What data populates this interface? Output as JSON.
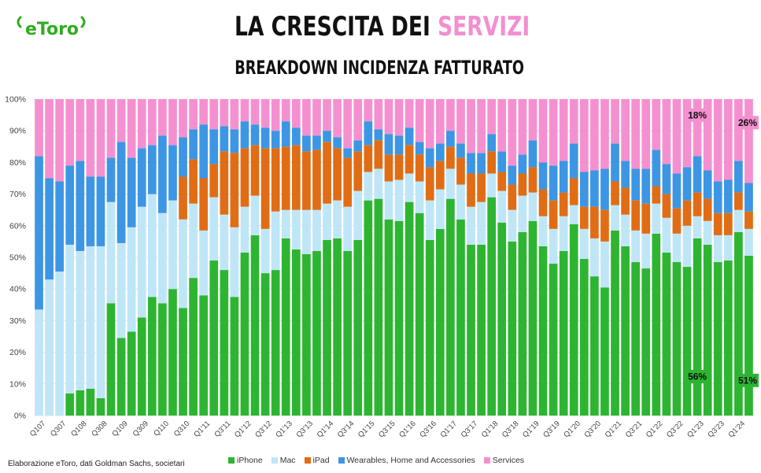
{
  "brand": {
    "logo_text": "eToro",
    "color": "#2fae1f"
  },
  "header": {
    "title_main": "LA CRESCITA DEI ",
    "title_highlight": "SERVIZI",
    "subtitle": "BREAKDOWN INCIDENZA FATTURATO"
  },
  "footer": {
    "source": "Elaborazione eToro, dati Goldman Sachs, societari"
  },
  "chart_data": {
    "type": "bar",
    "stacked": true,
    "percent_stacked": true,
    "ylim": [
      0,
      100
    ],
    "yticks": [
      "0%",
      "10%",
      "20%",
      "30%",
      "40%",
      "50%",
      "60%",
      "70%",
      "80%",
      "90%",
      "100%"
    ],
    "grid": "horizontal",
    "legend_position": "bottom",
    "categories": [
      "Q107",
      "Q207",
      "Q307",
      "Q407",
      "Q108",
      "Q208",
      "Q308",
      "Q408",
      "Q109",
      "Q209",
      "Q309",
      "Q409",
      "Q110",
      "Q210",
      "Q310",
      "Q410",
      "Q1'11",
      "Q2'11",
      "Q3'11",
      "Q4'11",
      "Q1'12",
      "Q2'12",
      "Q3'12",
      "Q4'12",
      "Q1'13",
      "Q2'13",
      "Q3'13",
      "Q4'13",
      "Q1'14",
      "Q2'14",
      "Q3'14",
      "Q4'14",
      "Q1'15",
      "Q2'15",
      "Q3'15",
      "Q4'15",
      "Q1'16",
      "Q2'16",
      "Q3'16",
      "Q4'16",
      "Q1'17",
      "Q2'17",
      "Q3'17",
      "Q4'17",
      "Q1'18",
      "Q2'18",
      "Q3'18",
      "Q4'18",
      "Q1'19",
      "Q2'19",
      "Q3'19",
      "Q4'19",
      "Q1'20",
      "Q2'20",
      "Q3'20",
      "Q4'20",
      "Q1'21",
      "Q2'21",
      "Q3'21",
      "Q4'21",
      "Q1'22",
      "Q2'22",
      "Q3'22",
      "Q4'22",
      "Q1'23",
      "Q2'23",
      "Q3'23",
      "Q4'23",
      "Q1'24",
      "Q2'24"
    ],
    "x_tick_labels_shown": [
      "Q107",
      "Q307",
      "Q108",
      "Q308",
      "Q109",
      "Q309",
      "Q110",
      "Q310",
      "Q1'11",
      "Q3'11",
      "Q1'12",
      "Q3'12",
      "Q1'13",
      "Q3'13",
      "Q1'14",
      "Q3'14",
      "Q1'15",
      "Q3'15",
      "Q1'16",
      "Q3'16",
      "Q1'17",
      "Q3'17",
      "Q1'18",
      "Q3'18",
      "Q1'19",
      "Q3'19",
      "Q1'20",
      "Q3'20",
      "Q1'21",
      "Q3'21",
      "Q1'22",
      "Q3'22",
      "Q1'23",
      "Q3'23",
      "Q1'24"
    ],
    "series": [
      {
        "name": "iPhone",
        "color": "#2db532",
        "values": [
          0,
          0,
          0,
          7,
          8,
          8.5,
          5.5,
          35.5,
          24.5,
          26.5,
          31,
          37.5,
          35.5,
          40,
          34,
          43.5,
          38,
          49,
          46,
          37.5,
          51.5,
          57,
          45,
          46,
          56,
          52.5,
          51,
          52,
          55.5,
          56,
          52,
          55.5,
          68,
          68.5,
          62,
          61.5,
          67.5,
          64,
          55.5,
          59,
          68.5,
          62,
          54,
          54,
          69,
          61,
          55,
          58,
          61.5,
          53.5,
          48,
          52,
          60.5,
          49.5,
          44,
          40.5,
          58.5,
          53.5,
          48.5,
          46.5,
          57.5,
          51.5,
          48.5,
          47,
          56,
          54,
          48.5,
          49,
          58,
          50.5
        ]
      },
      {
        "name": "Mac",
        "color": "#bfe6f7",
        "values": [
          33.5,
          43,
          45.5,
          47,
          44,
          45,
          48,
          32,
          30,
          33,
          35,
          32.5,
          28.5,
          28,
          28,
          23.5,
          20.5,
          20,
          17.5,
          22,
          14.5,
          12.5,
          14,
          18.5,
          9,
          12.5,
          14,
          13,
          11.5,
          12,
          14,
          15.5,
          9,
          9.5,
          12,
          13,
          9,
          10,
          12.5,
          12.5,
          9.5,
          11,
          12,
          13.5,
          7.5,
          10,
          10,
          11.5,
          9,
          9.5,
          11,
          11,
          6,
          9.5,
          12,
          14.5,
          8,
          10,
          10,
          11,
          9.5,
          11,
          9,
          13,
          7,
          7.5,
          8.5,
          8,
          7,
          8.5
        ]
      },
      {
        "name": "iPad",
        "color": "#e06d16",
        "values": [
          0,
          0,
          0,
          0,
          0,
          0,
          0,
          0,
          0,
          0,
          0,
          0,
          0,
          0,
          13.5,
          14,
          16.5,
          10.5,
          20,
          23.5,
          18.5,
          16,
          25.5,
          20,
          20,
          20.5,
          18.5,
          19,
          19.5,
          16.5,
          15.5,
          12.5,
          8.5,
          9,
          8.5,
          8,
          9,
          8.5,
          10.5,
          9,
          7,
          8.5,
          10.5,
          9,
          7,
          6,
          8,
          7,
          8,
          8.5,
          9,
          7.5,
          8.5,
          7,
          10,
          10,
          7.5,
          8.5,
          9.5,
          9.5,
          5.5,
          7.5,
          8,
          8,
          7.5,
          7,
          7,
          7,
          5.5,
          5.5
        ]
      },
      {
        "name": "Wearables, Home and Accessories",
        "color": "#3d96e3",
        "values": [
          48.5,
          32,
          28.5,
          25,
          28.5,
          22,
          22,
          14,
          32,
          22,
          18.5,
          15.5,
          24.5,
          17.5,
          12.5,
          9.5,
          17,
          11,
          8,
          7.5,
          8.5,
          6.5,
          6.5,
          5.5,
          8,
          5.5,
          5,
          4.5,
          3.5,
          3.5,
          3,
          3.5,
          7.5,
          3.5,
          6.5,
          6,
          5.5,
          4,
          6,
          5.5,
          5,
          4.5,
          6.5,
          6.5,
          5.5,
          6.5,
          6,
          6,
          8.5,
          8.5,
          11,
          10,
          11,
          11,
          11.5,
          13,
          12,
          8.5,
          10,
          11,
          11.5,
          9.5,
          11,
          10.5,
          11.5,
          9,
          10,
          10.5,
          10,
          9
        ]
      },
      {
        "name": "Services",
        "color": "#f590d0",
        "values": [
          18,
          25,
          26,
          21,
          19.5,
          24.5,
          24.5,
          18.5,
          13.5,
          18.5,
          15.5,
          14.5,
          11.5,
          14.5,
          12,
          9.5,
          8,
          9.5,
          8.5,
          9.5,
          7,
          8,
          9,
          10,
          7,
          9,
          11.5,
          11.5,
          10,
          12,
          15.5,
          13,
          7,
          9.5,
          11,
          11.5,
          9,
          13.5,
          15.5,
          14,
          10,
          14,
          17,
          17,
          11,
          16.5,
          21,
          17.5,
          13,
          20,
          21,
          19.5,
          14,
          23,
          22.5,
          22,
          14,
          19.5,
          22,
          22,
          16,
          20.5,
          23.5,
          21.5,
          18,
          22.5,
          26,
          25.5,
          19.5,
          26.5
        ]
      }
    ],
    "annotations": [
      {
        "text": "18%",
        "category": "Q1'23",
        "series": "Services"
      },
      {
        "text": "26%",
        "category": "Q2'24",
        "series": "Services"
      },
      {
        "text": "56%",
        "category": "Q1'23",
        "series": "iPhone"
      },
      {
        "text": "51%",
        "category": "Q2'24",
        "series": "iPhone"
      }
    ]
  }
}
